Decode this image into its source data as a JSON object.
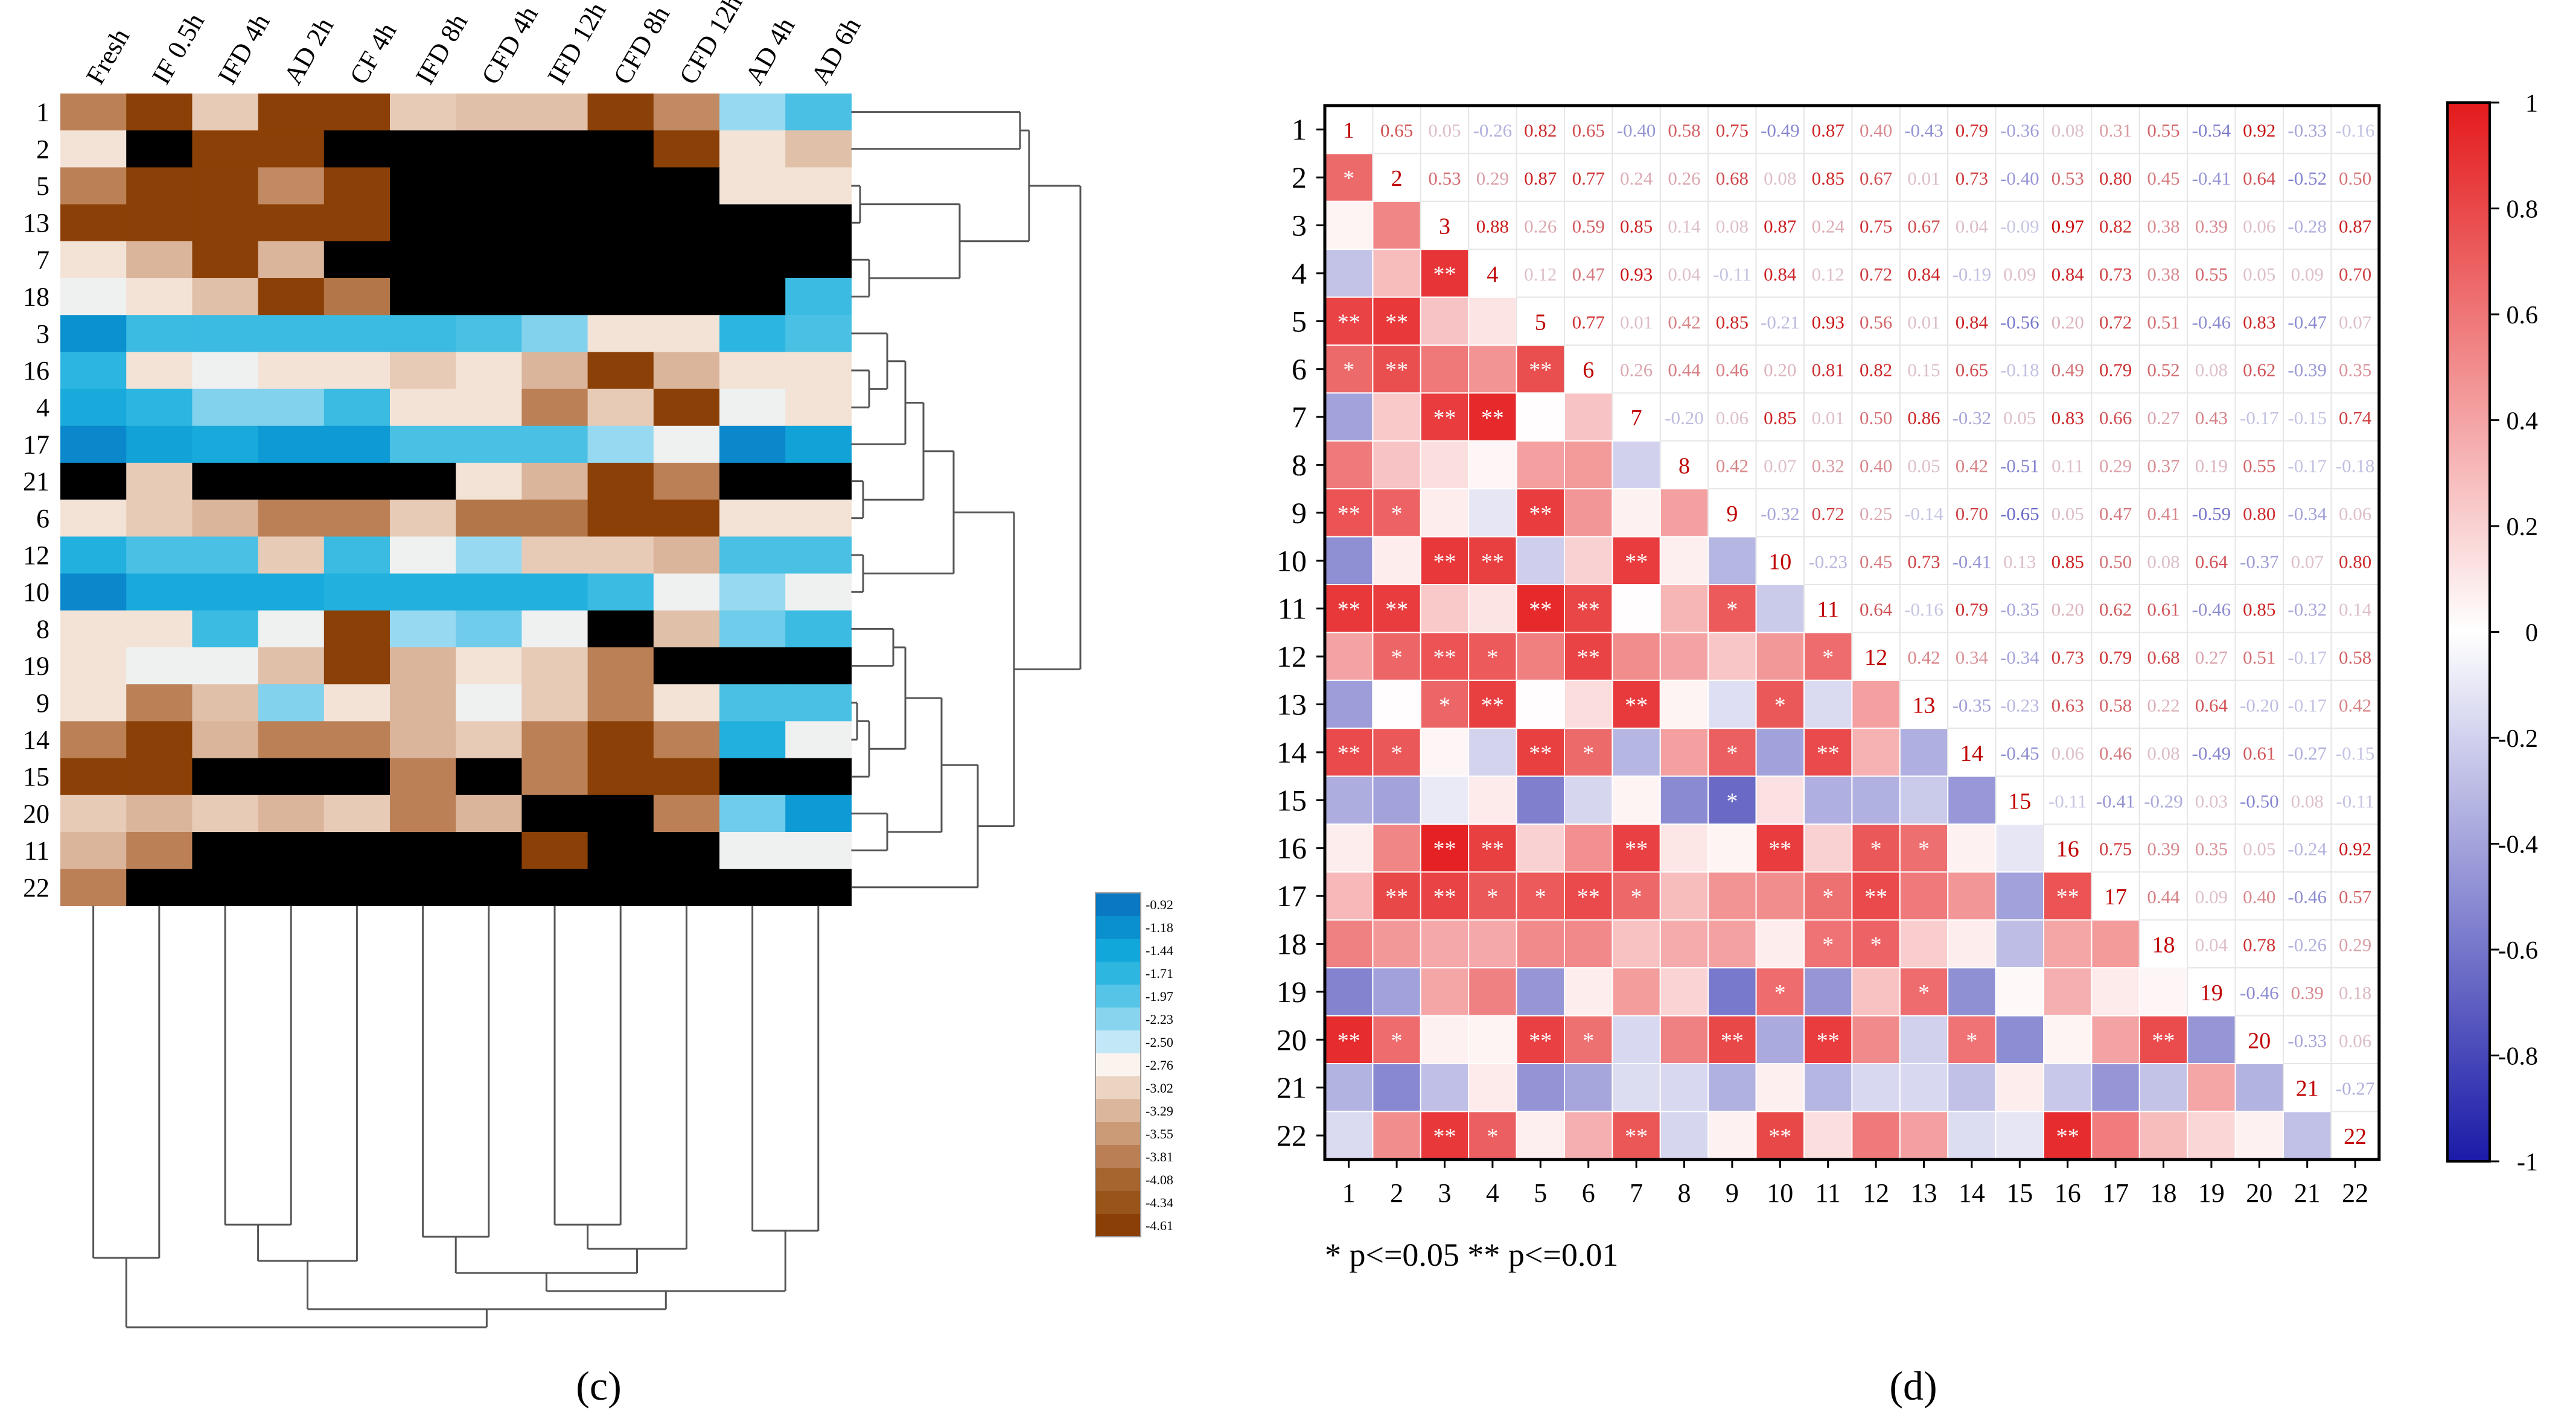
{
  "figure": {
    "panel_c_label": "(c)",
    "panel_d_label": "(d)",
    "significance_note": "* p<=0.05  ** p<=0.01"
  },
  "chart_data": [
    {
      "type": "heatmap",
      "panel": "(c)",
      "columns": [
        "Fresh",
        "IF 0.5h",
        "IFD 4h",
        "AD 2h",
        "CF 4h",
        "IFD 8h",
        "CFD 4h",
        "IFD 12h",
        "CFD 8h",
        "CFD 12h",
        "AD 4h",
        "AD 6h"
      ],
      "rows": [
        "1",
        "2",
        "5",
        "13",
        "7",
        "18",
        "3",
        "16",
        "4",
        "17",
        "21",
        "6",
        "12",
        "10",
        "8",
        "19",
        "9",
        "14",
        "15",
        "20",
        "11",
        "22"
      ],
      "legend_ticks": [
        "-0.92",
        "-1.18",
        "-1.44",
        "-1.71",
        "-1.97",
        "-2.23",
        "-2.50",
        "-2.76",
        "-3.02",
        "-3.29",
        "-3.55",
        "-3.81",
        "-4.08",
        "-4.34",
        "-4.61"
      ],
      "legend_colors": [
        "#0a78c2",
        "#0a8fcf",
        "#12a7da",
        "#2db6e0",
        "#55c4e6",
        "#88d4ee",
        "#c2e7f6",
        "#fbf4ee",
        "#ecd4c3",
        "#dcb69c",
        "#cb9a77",
        "#ba7f55",
        "#a6652f",
        "#985419",
        "#8a3f06"
      ],
      "values": [
        [
          -3.8,
          -4.6,
          -3.1,
          -4.6,
          -4.6,
          -3.1,
          -3.2,
          -3.2,
          -4.6,
          -3.7,
          -2.3,
          -1.9
        ],
        [
          -2.9,
          "NA",
          -4.6,
          -4.6,
          "NA",
          "NA",
          "NA",
          "NA",
          "NA",
          -4.6,
          -2.9,
          -3.2
        ],
        [
          -3.8,
          -4.6,
          -4.6,
          -3.7,
          -4.6,
          "NA",
          "NA",
          "NA",
          "NA",
          "NA",
          -2.9,
          -2.9
        ],
        [
          -4.6,
          -4.6,
          -4.6,
          -4.6,
          -4.6,
          "NA",
          "NA",
          "NA",
          "NA",
          "NA",
          "NA",
          "NA"
        ],
        [
          -2.9,
          -3.3,
          -4.6,
          -3.3,
          "NA",
          "NA",
          "NA",
          "NA",
          "NA",
          "NA",
          "NA",
          "NA"
        ],
        [
          -2.7,
          -2.9,
          -3.2,
          -4.6,
          -3.9,
          "NA",
          "NA",
          "NA",
          "NA",
          "NA",
          "NA",
          -1.8
        ],
        [
          -1.2,
          -1.8,
          -1.8,
          -1.8,
          -1.8,
          -1.8,
          -1.9,
          -2.2,
          -2.9,
          -2.9,
          -1.7,
          -1.9
        ],
        [
          -1.7,
          -2.9,
          -2.7,
          -2.9,
          -2.9,
          -3.1,
          -2.9,
          -3.3,
          -4.6,
          -3.3,
          -2.9,
          -2.9
        ],
        [
          -1.5,
          -1.7,
          -2.2,
          -2.2,
          -1.8,
          -2.9,
          -2.9,
          -3.8,
          -3.1,
          -4.6,
          -2.7,
          -2.9
        ],
        [
          -1.1,
          -1.4,
          -1.5,
          -1.3,
          -1.3,
          -1.9,
          -1.9,
          -1.9,
          -2.3,
          -2.7,
          -1.1,
          -1.4
        ],
        [
          "NA",
          -3.1,
          "NA",
          "NA",
          "NA",
          "NA",
          -2.9,
          -3.3,
          -4.6,
          -3.8,
          "NA",
          "NA"
        ],
        [
          -2.9,
          -3.1,
          -3.3,
          -3.8,
          -3.8,
          -3.1,
          -3.9,
          -3.9,
          -4.6,
          -4.6,
          -2.9,
          -2.9
        ],
        [
          -1.6,
          -1.9,
          -1.9,
          -3.1,
          -1.8,
          -2.7,
          -2.3,
          -3.1,
          -3.1,
          -3.3,
          -1.9,
          -1.9
        ],
        [
          -1.1,
          -1.5,
          -1.5,
          -1.5,
          -1.6,
          -1.6,
          -1.6,
          -1.6,
          -1.8,
          -2.7,
          -2.3,
          -2.7
        ],
        [
          -2.9,
          -2.9,
          -1.8,
          -2.7,
          -4.6,
          -2.3,
          -2.1,
          -2.7,
          "NA",
          -3.2,
          -2.1,
          -1.8
        ],
        [
          -2.9,
          -2.7,
          -2.7,
          -3.2,
          -4.6,
          -3.3,
          -2.9,
          -3.1,
          -3.8,
          "NA",
          "NA",
          "NA"
        ],
        [
          -2.9,
          -3.8,
          -3.2,
          -2.2,
          -2.9,
          -3.3,
          -2.7,
          -3.1,
          -3.8,
          -2.9,
          -1.9,
          -1.9
        ],
        [
          -3.8,
          -4.6,
          -3.3,
          -3.8,
          -3.8,
          -3.3,
          -3.1,
          -3.8,
          -4.6,
          -3.8,
          -1.6,
          -2.7
        ],
        [
          -4.6,
          -4.6,
          "NA",
          "NA",
          "NA",
          -3.8,
          "NA",
          -3.8,
          -4.6,
          -4.6,
          "NA",
          "NA"
        ],
        [
          -3.1,
          -3.3,
          -3.1,
          -3.3,
          -3.1,
          -3.8,
          -3.3,
          "NA",
          "NA",
          -3.8,
          -2.1,
          -1.3
        ],
        [
          -3.3,
          -3.8,
          "NA",
          "NA",
          "NA",
          "NA",
          "NA",
          -4.6,
          "NA",
          "NA",
          -2.7,
          -2.7
        ],
        [
          -3.8,
          "NA",
          "NA",
          "NA",
          "NA",
          "NA",
          "NA",
          "NA",
          "NA",
          "NA",
          "NA",
          "NA"
        ]
      ],
      "na_color": "#000000"
    },
    {
      "type": "heatmap",
      "panel": "(d)",
      "labels": [
        "1",
        "2",
        "3",
        "4",
        "5",
        "6",
        "7",
        "8",
        "9",
        "10",
        "11",
        "12",
        "13",
        "14",
        "15",
        "16",
        "17",
        "18",
        "19",
        "20",
        "21",
        "22"
      ],
      "colorbar_ticks": [
        "1",
        "0.8",
        "0.6",
        "0.4",
        "0.2",
        "0",
        "-0.2",
        "-0.4",
        "-0.6",
        "-0.8",
        "-1"
      ],
      "colorbar_range": [
        -1,
        1
      ],
      "colors": {
        "positive": "#e41a1c",
        "negative": "#1a1aa8",
        "neutral": "#ffffff",
        "frame": "#000000"
      },
      "corr": [
        [
          1,
          0.65,
          0.05,
          -0.26,
          0.82,
          0.65,
          -0.4,
          0.58,
          0.75,
          -0.49,
          0.87,
          0.4,
          -0.43,
          0.79,
          -0.36,
          0.08,
          0.31,
          0.55,
          -0.54,
          0.92,
          -0.33,
          -0.16
        ],
        [
          0.65,
          1,
          0.53,
          0.29,
          0.87,
          0.77,
          0.24,
          0.26,
          0.68,
          0.08,
          0.85,
          0.67,
          0.01,
          0.73,
          -0.4,
          0.53,
          0.8,
          0.45,
          -0.41,
          0.64,
          -0.52,
          0.5
        ],
        [
          0.05,
          0.53,
          1,
          0.88,
          0.26,
          0.59,
          0.85,
          0.14,
          0.08,
          0.87,
          0.24,
          0.75,
          0.67,
          0.04,
          -0.09,
          0.97,
          0.82,
          0.38,
          0.39,
          0.06,
          -0.28,
          0.87
        ],
        [
          -0.26,
          0.29,
          0.88,
          1,
          0.12,
          0.47,
          0.93,
          0.04,
          -0.11,
          0.84,
          0.12,
          0.72,
          0.84,
          -0.19,
          0.09,
          0.84,
          0.73,
          0.38,
          0.55,
          0.05,
          0.09,
          0.7
        ],
        [
          0.82,
          0.87,
          0.26,
          0.12,
          1,
          0.77,
          0.01,
          0.42,
          0.85,
          -0.21,
          0.93,
          0.56,
          0.01,
          0.84,
          -0.56,
          0.2,
          0.72,
          0.51,
          -0.46,
          0.83,
          -0.47,
          0.07
        ],
        [
          0.65,
          0.77,
          0.59,
          0.47,
          0.77,
          1,
          0.26,
          0.44,
          0.46,
          0.2,
          0.81,
          0.82,
          0.15,
          0.65,
          -0.18,
          0.49,
          0.79,
          0.52,
          0.08,
          0.62,
          -0.39,
          0.35
        ],
        [
          -0.4,
          0.24,
          0.85,
          0.93,
          0.01,
          0.26,
          1,
          -0.2,
          0.06,
          0.85,
          0.01,
          0.5,
          0.86,
          -0.32,
          0.05,
          0.83,
          0.66,
          0.27,
          0.43,
          -0.17,
          -0.15,
          0.74
        ],
        [
          0.58,
          0.26,
          0.14,
          0.04,
          0.42,
          0.44,
          -0.2,
          1,
          0.42,
          0.07,
          0.32,
          0.4,
          0.05,
          0.42,
          -0.51,
          0.11,
          0.29,
          0.37,
          0.19,
          0.55,
          -0.17,
          -0.18
        ],
        [
          0.75,
          0.68,
          0.08,
          -0.11,
          0.85,
          0.46,
          0.06,
          0.42,
          1,
          -0.32,
          0.72,
          0.25,
          -0.14,
          0.7,
          -0.65,
          0.05,
          0.47,
          0.41,
          -0.59,
          0.8,
          -0.34,
          0.06
        ],
        [
          -0.49,
          0.08,
          0.87,
          0.84,
          -0.21,
          0.2,
          0.85,
          0.07,
          -0.32,
          1,
          -0.23,
          0.45,
          0.73,
          -0.41,
          0.13,
          0.85,
          0.5,
          0.08,
          0.64,
          -0.37,
          0.07,
          0.8
        ],
        [
          0.87,
          0.85,
          0.24,
          0.12,
          0.93,
          0.81,
          0.01,
          0.32,
          0.72,
          -0.23,
          1,
          0.64,
          -0.16,
          0.79,
          -0.35,
          0.2,
          0.62,
          0.61,
          -0.46,
          0.85,
          -0.32,
          0.14
        ],
        [
          0.4,
          0.67,
          0.75,
          0.72,
          0.56,
          0.82,
          0.5,
          0.4,
          0.25,
          0.45,
          0.64,
          1,
          0.42,
          0.34,
          -0.34,
          0.73,
          0.79,
          0.68,
          0.27,
          0.51,
          -0.17,
          0.58
        ],
        [
          -0.43,
          0.01,
          0.67,
          0.84,
          0.01,
          0.15,
          0.86,
          0.05,
          -0.14,
          0.73,
          -0.16,
          0.42,
          1,
          -0.35,
          -0.23,
          0.63,
          0.58,
          0.22,
          0.64,
          -0.2,
          -0.17,
          0.42
        ],
        [
          0.79,
          0.73,
          0.04,
          -0.19,
          0.84,
          0.65,
          -0.32,
          0.42,
          0.7,
          -0.41,
          0.79,
          0.34,
          -0.35,
          1,
          -0.45,
          0.06,
          0.46,
          0.08,
          -0.49,
          0.61,
          -0.27,
          -0.15
        ],
        [
          -0.36,
          -0.4,
          -0.09,
          0.09,
          -0.56,
          -0.18,
          0.05,
          -0.51,
          -0.65,
          0.13,
          -0.35,
          -0.34,
          -0.23,
          -0.45,
          1,
          -0.11,
          -0.41,
          -0.29,
          0.03,
          -0.5,
          0.08,
          -0.11
        ],
        [
          0.08,
          0.53,
          0.97,
          0.84,
          0.2,
          0.49,
          0.83,
          0.11,
          0.05,
          0.85,
          0.2,
          0.73,
          0.63,
          0.06,
          -0.11,
          1,
          0.75,
          0.39,
          0.35,
          0.05,
          -0.24,
          0.92
        ],
        [
          0.31,
          0.8,
          0.82,
          0.73,
          0.72,
          0.79,
          0.66,
          0.29,
          0.47,
          0.5,
          0.62,
          0.79,
          0.58,
          0.46,
          -0.41,
          0.75,
          1,
          0.44,
          0.09,
          0.4,
          -0.46,
          0.57
        ],
        [
          0.55,
          0.45,
          0.38,
          0.38,
          0.51,
          0.52,
          0.27,
          0.37,
          0.41,
          0.08,
          0.61,
          0.68,
          0.22,
          0.08,
          -0.29,
          0.39,
          0.44,
          1,
          0.04,
          0.78,
          -0.26,
          0.29
        ],
        [
          -0.54,
          -0.41,
          0.39,
          0.55,
          -0.46,
          0.08,
          0.43,
          0.19,
          -0.59,
          0.64,
          -0.46,
          0.27,
          0.64,
          -0.49,
          0.03,
          0.35,
          0.09,
          0.04,
          1,
          -0.46,
          0.39,
          0.18
        ],
        [
          0.92,
          0.64,
          0.06,
          0.05,
          0.83,
          0.62,
          -0.17,
          0.55,
          0.8,
          -0.37,
          0.85,
          0.51,
          -0.2,
          0.61,
          -0.5,
          0.05,
          0.4,
          0.78,
          -0.46,
          1,
          -0.33,
          0.06
        ],
        [
          -0.33,
          -0.52,
          -0.28,
          0.09,
          -0.47,
          -0.39,
          -0.15,
          -0.17,
          -0.34,
          0.07,
          -0.32,
          -0.17,
          -0.17,
          -0.27,
          0.08,
          -0.24,
          -0.46,
          -0.26,
          0.39,
          -0.33,
          1,
          -0.27
        ],
        [
          -0.16,
          0.5,
          0.87,
          0.7,
          0.07,
          0.35,
          0.74,
          -0.18,
          0.06,
          0.8,
          0.14,
          0.58,
          0.42,
          -0.15,
          -0.11,
          0.92,
          0.57,
          0.29,
          0.18,
          0.06,
          -0.27,
          1
        ]
      ],
      "significance": {
        "1-2": "*",
        "1-5": "**",
        "1-6": "*",
        "1-9": "**",
        "1-11": "**",
        "1-14": "**",
        "1-20": "**",
        "2-5": "**",
        "2-6": "**",
        "2-9": "*",
        "2-11": "**",
        "2-12": "*",
        "2-14": "*",
        "2-17": "**",
        "2-20": "*",
        "3-4": "**",
        "3-7": "**",
        "3-10": "**",
        "3-12": "**",
        "3-13": "*",
        "3-16": "**",
        "3-17": "**",
        "3-22": "**",
        "4-7": "**",
        "4-10": "**",
        "4-12": "*",
        "4-13": "**",
        "4-16": "**",
        "4-17": "*",
        "4-22": "*",
        "5-6": "**",
        "5-9": "**",
        "5-11": "**",
        "5-14": "**",
        "5-17": "*",
        "5-20": "**",
        "6-11": "**",
        "6-12": "**",
        "6-14": "*",
        "6-17": "**",
        "6-20": "*",
        "7-10": "**",
        "7-13": "**",
        "7-16": "**",
        "7-17": "*",
        "7-22": "**",
        "9-11": "*",
        "9-14": "*",
        "9-15": "*",
        "9-20": "**",
        "10-13": "*",
        "10-16": "**",
        "10-19": "*",
        "10-22": "**",
        "11-12": "*",
        "11-14": "**",
        "11-17": "*",
        "11-18": "*",
        "11-20": "**",
        "12-16": "*",
        "12-17": "**",
        "12-18": "*",
        "13-16": "*",
        "13-19": "*",
        "14-20": "*",
        "16-17": "**",
        "16-22": "**",
        "18-20": "**"
      }
    }
  ]
}
